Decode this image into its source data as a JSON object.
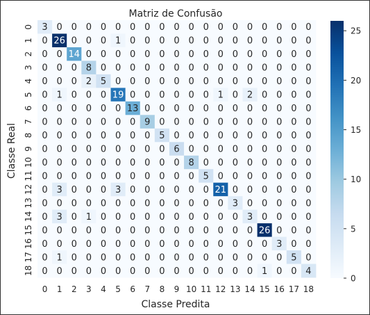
{
  "chart_data": {
    "type": "heatmap",
    "title": "Matriz de Confusão",
    "xlabel": "Classe Predita",
    "ylabel": "Classe Real",
    "x_categories": [
      "0",
      "1",
      "2",
      "3",
      "4",
      "5",
      "6",
      "7",
      "8",
      "9",
      "10",
      "11",
      "12",
      "13",
      "14",
      "15",
      "16",
      "17",
      "18"
    ],
    "y_categories": [
      "0",
      "1",
      "2",
      "3",
      "4",
      "5",
      "6",
      "7",
      "8",
      "9",
      "10",
      "11",
      "12",
      "13",
      "14",
      "15",
      "16",
      "17",
      "18"
    ],
    "matrix": [
      [
        3,
        0,
        0,
        0,
        0,
        0,
        0,
        0,
        0,
        0,
        0,
        0,
        0,
        0,
        0,
        0,
        0,
        0,
        0
      ],
      [
        0,
        26,
        0,
        0,
        0,
        1,
        0,
        0,
        0,
        0,
        0,
        0,
        0,
        0,
        0,
        0,
        0,
        0,
        0
      ],
      [
        0,
        0,
        14,
        0,
        0,
        0,
        0,
        0,
        0,
        0,
        0,
        0,
        0,
        0,
        0,
        0,
        0,
        0,
        0
      ],
      [
        0,
        0,
        0,
        8,
        0,
        0,
        0,
        0,
        0,
        0,
        0,
        0,
        0,
        0,
        0,
        0,
        0,
        0,
        0
      ],
      [
        0,
        0,
        0,
        2,
        5,
        0,
        0,
        0,
        0,
        0,
        0,
        0,
        0,
        0,
        0,
        0,
        0,
        0,
        0
      ],
      [
        0,
        1,
        0,
        0,
        0,
        19,
        0,
        0,
        0,
        0,
        0,
        0,
        1,
        0,
        2,
        0,
        0,
        0,
        0
      ],
      [
        0,
        0,
        0,
        0,
        0,
        0,
        13,
        0,
        0,
        0,
        0,
        0,
        0,
        0,
        0,
        0,
        0,
        0,
        0
      ],
      [
        0,
        0,
        0,
        0,
        0,
        0,
        0,
        9,
        0,
        0,
        0,
        0,
        0,
        0,
        0,
        0,
        0,
        0,
        0
      ],
      [
        0,
        0,
        0,
        0,
        0,
        0,
        0,
        0,
        5,
        0,
        0,
        0,
        0,
        0,
        0,
        0,
        0,
        0,
        0
      ],
      [
        0,
        0,
        0,
        0,
        0,
        0,
        0,
        0,
        0,
        6,
        0,
        0,
        0,
        0,
        0,
        0,
        0,
        0,
        0
      ],
      [
        0,
        0,
        0,
        0,
        0,
        0,
        0,
        0,
        0,
        0,
        8,
        0,
        0,
        0,
        0,
        0,
        0,
        0,
        0
      ],
      [
        0,
        0,
        0,
        0,
        0,
        0,
        0,
        0,
        0,
        0,
        0,
        5,
        0,
        0,
        0,
        0,
        0,
        0,
        0
      ],
      [
        0,
        3,
        0,
        0,
        0,
        3,
        0,
        0,
        0,
        0,
        0,
        0,
        21,
        0,
        0,
        0,
        0,
        0,
        0
      ],
      [
        0,
        0,
        0,
        0,
        0,
        0,
        0,
        0,
        0,
        0,
        0,
        0,
        0,
        3,
        0,
        0,
        0,
        0,
        0
      ],
      [
        0,
        3,
        0,
        1,
        0,
        0,
        0,
        0,
        0,
        0,
        0,
        0,
        0,
        0,
        3,
        0,
        0,
        0,
        0
      ],
      [
        0,
        0,
        0,
        0,
        0,
        0,
        0,
        0,
        0,
        0,
        0,
        0,
        0,
        0,
        0,
        26,
        0,
        0,
        0
      ],
      [
        0,
        0,
        0,
        0,
        0,
        0,
        0,
        0,
        0,
        0,
        0,
        0,
        0,
        0,
        0,
        0,
        3,
        0,
        0
      ],
      [
        0,
        1,
        0,
        0,
        0,
        0,
        0,
        0,
        0,
        0,
        0,
        0,
        0,
        0,
        0,
        0,
        0,
        5,
        0
      ],
      [
        0,
        0,
        0,
        0,
        0,
        0,
        0,
        0,
        0,
        0,
        0,
        0,
        0,
        0,
        0,
        1,
        0,
        0,
        4
      ]
    ],
    "vmin": 0,
    "vmax": 26,
    "colormap": "Blues",
    "colorbar_ticks": [
      0,
      5,
      10,
      15,
      20,
      25
    ],
    "cell_labels": true,
    "grid": false,
    "colors": {
      "low": "#f7fbff",
      "high": "#08306b"
    }
  }
}
